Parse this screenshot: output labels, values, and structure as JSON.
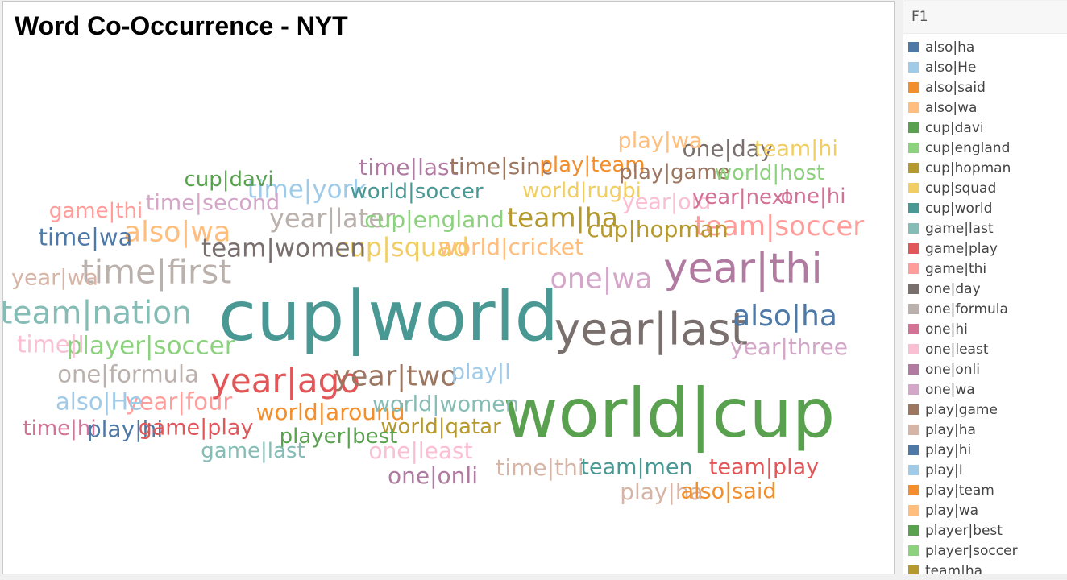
{
  "chart_data": {
    "type": "word-cloud",
    "title": "Word Co-Occurrence - NYT",
    "legend": {
      "title": "F1",
      "placement": "right",
      "entries": [
        {
          "label": "also|ha",
          "color": "#4e79a7"
        },
        {
          "label": "also|He",
          "color": "#a0cbe8"
        },
        {
          "label": "also|said",
          "color": "#f28e2b"
        },
        {
          "label": "also|wa",
          "color": "#ffbe7d"
        },
        {
          "label": "cup|davi",
          "color": "#59a14f"
        },
        {
          "label": "cup|england",
          "color": "#8cd17d"
        },
        {
          "label": "cup|hopman",
          "color": "#b6992d"
        },
        {
          "label": "cup|squad",
          "color": "#f1ce63"
        },
        {
          "label": "cup|world",
          "color": "#499894"
        },
        {
          "label": "game|last",
          "color": "#86bcb6"
        },
        {
          "label": "game|play",
          "color": "#e15759"
        },
        {
          "label": "game|thi",
          "color": "#ff9d9a"
        },
        {
          "label": "one|day",
          "color": "#79706e"
        },
        {
          "label": "one|formula",
          "color": "#bab0ac"
        },
        {
          "label": "one|hi",
          "color": "#d37295"
        },
        {
          "label": "one|least",
          "color": "#fabfd2"
        },
        {
          "label": "one|onli",
          "color": "#b07aa1"
        },
        {
          "label": "one|wa",
          "color": "#d4a6c8"
        },
        {
          "label": "play|game",
          "color": "#9d7660"
        },
        {
          "label": "play|ha",
          "color": "#d7b5a6"
        },
        {
          "label": "play|hi",
          "color": "#4e79a7"
        },
        {
          "label": "play|I",
          "color": "#a0cbe8"
        },
        {
          "label": "play|team",
          "color": "#f28e2b"
        },
        {
          "label": "play|wa",
          "color": "#ffbe7d"
        },
        {
          "label": "player|best",
          "color": "#59a14f"
        },
        {
          "label": "player|soccer",
          "color": "#8cd17d"
        },
        {
          "label": "team|ha",
          "color": "#b6992d"
        }
      ]
    },
    "words": [
      {
        "text": "cup|world",
        "weight": 100,
        "color": "#499894"
      },
      {
        "text": "world|cup",
        "weight": 97,
        "color": "#59a14f"
      },
      {
        "text": "year|last",
        "weight": 58,
        "color": "#79706e"
      },
      {
        "text": "year|thi",
        "weight": 52,
        "color": "#b07aa1"
      },
      {
        "text": "year|ago",
        "weight": 40,
        "color": "#e15759"
      },
      {
        "text": "time|first",
        "weight": 38,
        "color": "#bab0ac"
      },
      {
        "text": "team|nation",
        "weight": 35,
        "color": "#86bcb6"
      },
      {
        "text": "also|ha",
        "weight": 31,
        "color": "#4e79a7"
      },
      {
        "text": "year|two",
        "weight": 30,
        "color": "#9d7660"
      },
      {
        "text": "one|wa",
        "weight": 30,
        "color": "#d4a6c8"
      },
      {
        "text": "also|wa",
        "weight": 30,
        "color": "#ffbe7d"
      },
      {
        "text": "team|soccer",
        "weight": 29,
        "color": "#ff9d9a"
      },
      {
        "text": "team|ha",
        "weight": 27,
        "color": "#b6992d"
      },
      {
        "text": "year|later",
        "weight": 26,
        "color": "#bab0ac"
      },
      {
        "text": "cup|squad",
        "weight": 26,
        "color": "#f1ce63"
      },
      {
        "text": "player|soccer",
        "weight": 25,
        "color": "#8cd17d"
      },
      {
        "text": "team|women",
        "weight": 25,
        "color": "#79706e"
      },
      {
        "text": "time|york",
        "weight": 24,
        "color": "#a0cbe8"
      },
      {
        "text": "one|formula",
        "weight": 22,
        "color": "#bab0ac"
      },
      {
        "text": "year|four",
        "weight": 22,
        "color": "#ff9d9a"
      },
      {
        "text": "time|wa",
        "weight": 22,
        "color": "#4e79a7"
      },
      {
        "text": "also|He",
        "weight": 22,
        "color": "#a0cbe8"
      },
      {
        "text": "time|I",
        "weight": 22,
        "color": "#fabfd2"
      },
      {
        "text": "world|around",
        "weight": 20,
        "color": "#f28e2b"
      },
      {
        "text": "time|last",
        "weight": 20,
        "color": "#b07aa1"
      },
      {
        "text": "time|sinc",
        "weight": 20,
        "color": "#9d7660"
      },
      {
        "text": "cup|hopman",
        "weight": 20,
        "color": "#b6992d"
      },
      {
        "text": "cup|england",
        "weight": 20,
        "color": "#8cd17d"
      },
      {
        "text": "world|cricket",
        "weight": 20,
        "color": "#ffbe7d"
      },
      {
        "text": "year|three",
        "weight": 20,
        "color": "#d4a6c8"
      },
      {
        "text": "play|hi",
        "weight": 20,
        "color": "#4e79a7"
      },
      {
        "text": "one|least",
        "weight": 20,
        "color": "#fabfd2"
      },
      {
        "text": "one|onli",
        "weight": 20,
        "color": "#b07aa1"
      },
      {
        "text": "time|thi",
        "weight": 20,
        "color": "#d7b5a6"
      },
      {
        "text": "play|ha",
        "weight": 20,
        "color": "#d7b5a6"
      },
      {
        "text": "one|day",
        "weight": 20,
        "color": "#79706e"
      },
      {
        "text": "play|wa",
        "weight": 19,
        "color": "#ffbe7d"
      },
      {
        "text": "team|hi",
        "weight": 19,
        "color": "#f1ce63"
      },
      {
        "text": "year|old",
        "weight": 19,
        "color": "#fabfd2"
      },
      {
        "text": "game|play",
        "weight": 19,
        "color": "#e15759"
      },
      {
        "text": "world|women",
        "weight": 19,
        "color": "#86bcb6"
      },
      {
        "text": "time|second",
        "weight": 19,
        "color": "#d4a6c8"
      },
      {
        "text": "year|wa",
        "weight": 19,
        "color": "#d7b5a6"
      },
      {
        "text": "play|I",
        "weight": 19,
        "color": "#a0cbe8"
      },
      {
        "text": "team|men",
        "weight": 19,
        "color": "#499894"
      },
      {
        "text": "team|play",
        "weight": 19,
        "color": "#e15759"
      },
      {
        "text": "also|said",
        "weight": 19,
        "color": "#f28e2b"
      },
      {
        "text": "play|team",
        "weight": 18,
        "color": "#f28e2b"
      },
      {
        "text": "play|game",
        "weight": 18,
        "color": "#9d7660"
      },
      {
        "text": "world|host",
        "weight": 18,
        "color": "#8cd17d"
      },
      {
        "text": "world|soccer",
        "weight": 18,
        "color": "#499894"
      },
      {
        "text": "world|rugbi",
        "weight": 18,
        "color": "#f1ce63"
      },
      {
        "text": "year|next",
        "weight": 18,
        "color": "#d37295"
      },
      {
        "text": "one|hi",
        "weight": 18,
        "color": "#d37295"
      },
      {
        "text": "cup|davi",
        "weight": 18,
        "color": "#59a14f"
      },
      {
        "text": "game|thi",
        "weight": 18,
        "color": "#ff9d9a"
      },
      {
        "text": "time|hi",
        "weight": 18,
        "color": "#d37295"
      },
      {
        "text": "world|qatar",
        "weight": 18,
        "color": "#b6992d"
      },
      {
        "text": "player|best",
        "weight": 18,
        "color": "#59a14f"
      },
      {
        "text": "game|last",
        "weight": 18,
        "color": "#86bcb6"
      }
    ]
  }
}
